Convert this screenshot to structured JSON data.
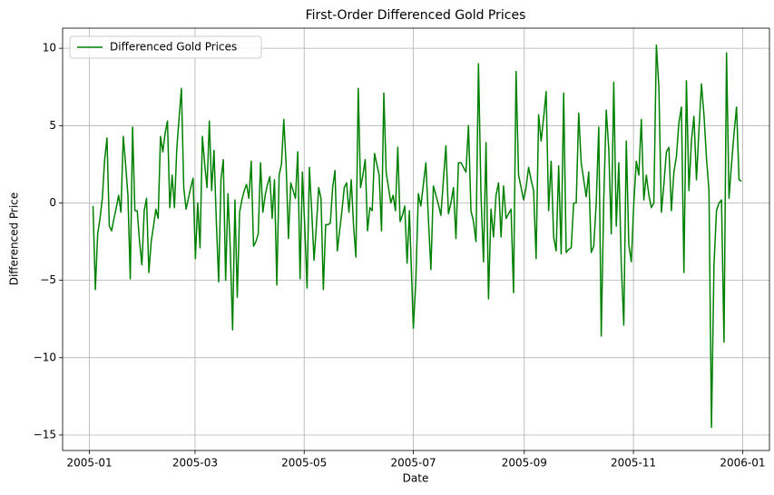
{
  "chart_data": {
    "type": "line",
    "title": "First-Order Differenced Gold Prices",
    "x_label": "Date",
    "y_label": "Differenced Price",
    "legend": "upper left",
    "grid": true,
    "xlim": [
      -15,
      380
    ],
    "xticks": [
      {
        "value": 0,
        "label": "2005-01"
      },
      {
        "value": 59,
        "label": "2005-03"
      },
      {
        "value": 120,
        "label": "2005-05"
      },
      {
        "value": 181,
        "label": "2005-07"
      },
      {
        "value": 243,
        "label": "2005-09"
      },
      {
        "value": 304,
        "label": "2005-11"
      },
      {
        "value": 365,
        "label": "2006-01"
      }
    ],
    "ylim": [
      -16,
      11.3
    ],
    "yticks": [
      {
        "value": -15,
        "label": "−15"
      },
      {
        "value": -10,
        "label": "−10"
      },
      {
        "value": -5,
        "label": "−5"
      },
      0,
      5,
      10
    ],
    "x": [
      2,
      3.3,
      4.6,
      5.9,
      7.2,
      8.5,
      9.8,
      11.1,
      12.4,
      13.7,
      15,
      16.3,
      17.6,
      18.9,
      20.2,
      21.5,
      22.8,
      24.1,
      25.4,
      26.7,
      28,
      29.3,
      30.6,
      31.9,
      33.2,
      34.5,
      35.8,
      37.1,
      38.4,
      39.7,
      41,
      42.3,
      43.6,
      44.9,
      46.2,
      47.5,
      48.8,
      50.1,
      51.4,
      52.7,
      54,
      55.3,
      56.6,
      57.9,
      59.2,
      60.5,
      61.8,
      63.1,
      64.4,
      65.7,
      67,
      68.3,
      69.6,
      70.9,
      72.2,
      73.5,
      74.8,
      76.1,
      77.4,
      78.7,
      80,
      81.3,
      82.6,
      83.9,
      85.2,
      86.5,
      87.8,
      89.1,
      90.4,
      91.7,
      93,
      94.3,
      95.6,
      96.9,
      98.2,
      99.5,
      100.8,
      102.1,
      103.4,
      104.7,
      106,
      107.3,
      108.6,
      109.9,
      111.2,
      112.5,
      113.8,
      115.1,
      116.4,
      117.7,
      119,
      120.3,
      121.6,
      122.9,
      124.2,
      125.5,
      126.8,
      128.1,
      129.4,
      130.7,
      132,
      133.3,
      134.6,
      135.9,
      137.2,
      138.5,
      139.8,
      141.1,
      142.4,
      143.7,
      145,
      146.3,
      147.6,
      148.9,
      150.2,
      151.5,
      152.8,
      154.1,
      155.4,
      156.7,
      158,
      159.3,
      160.6,
      161.9,
      163.2,
      164.5,
      165.8,
      167.1,
      168.4,
      169.7,
      171,
      172.3,
      173.6,
      174.9,
      176.2,
      177.5,
      178.8,
      181,
      182.4,
      183.8,
      185.2,
      186.6,
      188,
      189.4,
      190.8,
      192.2,
      193.6,
      195,
      196.4,
      197.8,
      199.2,
      200.6,
      202,
      203.4,
      204.8,
      206.2,
      207.6,
      209,
      210.4,
      211.8,
      213.2,
      214.6,
      216,
      217.4,
      218.8,
      220.2,
      221.6,
      223,
      224.4,
      225.8,
      227.2,
      228.6,
      230,
      231.4,
      232.8,
      234.2,
      235.6,
      237,
      238.4,
      239.8,
      241.2,
      242.6,
      244,
      245.4,
      246.8,
      248.2,
      249.6,
      251,
      252.4,
      253.8,
      255.2,
      256.6,
      258,
      259.4,
      260.8,
      262.2,
      263.6,
      265,
      266.4,
      267.8,
      269.2,
      270.6,
      272,
      273.4,
      274.8,
      276.2,
      277.6,
      279,
      280.4,
      281.8,
      283.2,
      284.6,
      286,
      287.4,
      288.8,
      290.2,
      291.6,
      293,
      294.4,
      295.8,
      297.2,
      298.6,
      300,
      301.4,
      302.8,
      304.2,
      305.6,
      307,
      308.4,
      309.8,
      311.2,
      312.6,
      314,
      315.4,
      316.8,
      318.2,
      319.6,
      321,
      322.4,
      323.8,
      325.2,
      326.6,
      328,
      329.4,
      330.8,
      332.2,
      333.6,
      335,
      336.4,
      337.8,
      339.2,
      340.6,
      342,
      343.4,
      344.8,
      346.2,
      347.6,
      349,
      350.4,
      351.8,
      353.2,
      354.6,
      356,
      357.4,
      358.8,
      360.2,
      361.6,
      363,
      364.4
    ],
    "series": [
      {
        "name": "Differenced Gold Prices",
        "color": "#008000",
        "values": [
          -0.2,
          -5.6,
          -2,
          -1,
          0.3,
          2.8,
          4.2,
          -1.5,
          -1.8,
          -1,
          -0.3,
          0.5,
          -0.6,
          4.3,
          2.5,
          0.5,
          -4.9,
          4.9,
          -0.5,
          -0.5,
          -2.5,
          -4,
          -0.5,
          0.3,
          -4.5,
          -2.5,
          -1.5,
          -0.4,
          -1,
          4.3,
          3.3,
          4.5,
          5.3,
          -0.3,
          1.8,
          -0.3,
          3.5,
          5.5,
          7.4,
          1,
          -0.4,
          0.3,
          1,
          1.6,
          -3.6,
          0,
          -2.9,
          4.3,
          2.5,
          1,
          5.3,
          0.8,
          3.4,
          -1.2,
          -5.1,
          1.5,
          2.8,
          -5,
          0.6,
          -3,
          -8.2,
          0.2,
          -6.1,
          -0.6,
          0.2,
          0.8,
          1.2,
          0.3,
          2.7,
          -2.8,
          -2.5,
          -2,
          2.6,
          -0.6,
          0.5,
          1.2,
          1.7,
          -1,
          1.5,
          -5.3,
          1.8,
          2.5,
          5.4,
          2.5,
          -2.3,
          1.3,
          0.8,
          0.3,
          3.3,
          -4.9,
          2,
          -1.5,
          -5.5,
          2.3,
          -0.5,
          -3.7,
          -1.5,
          1,
          0.3,
          -5.6,
          -1.4,
          -1.4,
          -1.3,
          1,
          2.1,
          -3.1,
          -1.8,
          -0.5,
          1,
          1.3,
          -0.6,
          1.5,
          -1.5,
          -3.5,
          7.4,
          1,
          1.8,
          2.8,
          -1.8,
          -0.3,
          -0.5,
          3.2,
          2.5,
          1.8,
          -1.8,
          7.1,
          2,
          1,
          0,
          0.5,
          -0.5,
          3.6,
          -1.2,
          -0.8,
          -0.2,
          -3.9,
          -0.5,
          -8.1,
          -5,
          0.6,
          -0.2,
          1.2,
          2.6,
          -1,
          -4.3,
          1.1,
          0.5,
          -0.1,
          -0.8,
          1.5,
          3.7,
          -0.7,
          0,
          1,
          -2.3,
          2.6,
          2.6,
          2.3,
          2,
          5,
          -0.5,
          -1.2,
          -2.5,
          9,
          0.5,
          -3.8,
          3.9,
          -6.2,
          -0.4,
          -2.2,
          0.5,
          1.3,
          -2.2,
          1.1,
          -1,
          -0.7,
          -0.4,
          -5.8,
          8.5,
          1.8,
          1,
          0.2,
          1,
          2.3,
          1.5,
          0.8,
          -3.6,
          5.7,
          4,
          5.5,
          7.2,
          -0.5,
          2.7,
          -2.2,
          -3.1,
          2.4,
          -3.3,
          7.1,
          -3.2,
          -3,
          -2.9,
          0,
          0,
          5.8,
          2.6,
          1.5,
          0.4,
          2,
          -3.2,
          -2.8,
          0,
          4.9,
          -8.6,
          0.2,
          6,
          3.5,
          -2,
          7.8,
          -1.5,
          2.6,
          -4,
          -7.9,
          4,
          -2.7,
          -3.8,
          0,
          2.7,
          1.8,
          5.4,
          0.2,
          1.8,
          0.5,
          -0.3,
          0,
          10.2,
          7.5,
          -0.6,
          1.2,
          3.3,
          3.6,
          -0.5,
          2,
          3,
          5.2,
          6.2,
          -4.5,
          7.9,
          0.8,
          4,
          5.6,
          1.5,
          4.7,
          7.7,
          5.7,
          2.9,
          0.8,
          -14.5,
          -4,
          -0.5,
          0,
          0.2,
          -9,
          9.7,
          0.3,
          2.5,
          4.5,
          6.2,
          1.5,
          1.4
        ]
      }
    ]
  }
}
